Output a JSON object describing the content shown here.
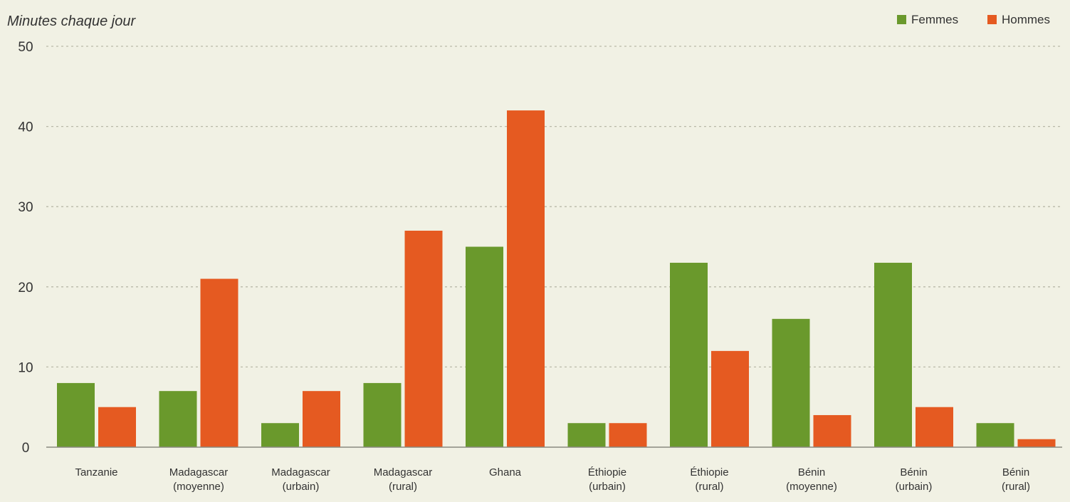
{
  "chart_data": {
    "type": "bar",
    "ylabel": "Minutes chaque jour",
    "ylim": [
      0,
      50
    ],
    "yticks": [
      0,
      10,
      20,
      30,
      40,
      50
    ],
    "grid": true,
    "legend_position": "top-right",
    "categories": [
      [
        "Tanzanie"
      ],
      [
        "Madagascar",
        "(moyenne)"
      ],
      [
        "Madagascar",
        "(urbain)"
      ],
      [
        "Madagascar",
        "(rural)"
      ],
      [
        "Ghana"
      ],
      [
        "Éthiopie",
        "(urbain)"
      ],
      [
        "Éthiopie",
        "(rural)"
      ],
      [
        "Bénin",
        "(moyenne)"
      ],
      [
        "Bénin",
        "(urbain)"
      ],
      [
        "Bénin",
        "(rural)"
      ]
    ],
    "series": [
      {
        "name": "Femmes",
        "color": "#6a992c",
        "values": [
          8,
          7,
          3,
          8,
          25,
          3,
          23,
          16,
          23,
          3
        ]
      },
      {
        "name": "Hommes",
        "color": "#e55a21",
        "values": [
          5,
          21,
          7,
          27,
          42,
          3,
          12,
          4,
          5,
          1
        ]
      }
    ]
  }
}
